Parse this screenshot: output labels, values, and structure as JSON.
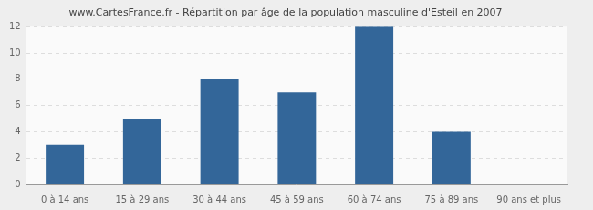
{
  "chart_data": {
    "type": "bar",
    "title": "www.CartesFrance.fr - Répartition par âge de la population masculine d'Esteil en 2007",
    "categories": [
      "0 à 14 ans",
      "15 à 29 ans",
      "30 à 44 ans",
      "45 à 59 ans",
      "60 à 74 ans",
      "75 à 89 ans",
      "90 ans et plus"
    ],
    "values": [
      3,
      5,
      8,
      7,
      12,
      4,
      0
    ],
    "color": "#336699",
    "ylim": [
      0,
      12
    ],
    "yticks": [
      0,
      2,
      4,
      6,
      8,
      10,
      12
    ],
    "grid": true
  }
}
